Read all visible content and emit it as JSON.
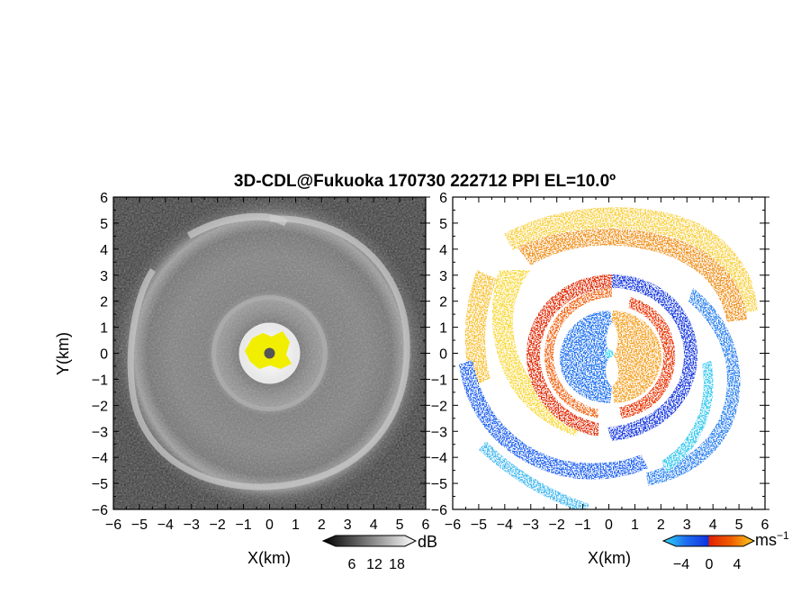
{
  "title": "3D-CDL@Fukuoka 170730 222712 PPI EL=10.0º",
  "colors": {
    "background": "#ffffff",
    "highlight_yellow": "#f2ee00",
    "velocity_negative": [
      "#1030e0",
      "#1e6ff0",
      "#18aaf0",
      "#30d8f0"
    ],
    "velocity_positive": [
      "#e02000",
      "#f06000",
      "#f59a10",
      "#f8cc20",
      "#f8e840"
    ]
  },
  "chart_data": [
    {
      "type": "heatmap",
      "panel": "left",
      "quantity": "reflectivity",
      "xlabel": "X(km)",
      "ylabel": "Y(km)",
      "xlim": [
        -6,
        6
      ],
      "ylim": [
        -6,
        6
      ],
      "xticks": [
        "−6",
        "−5",
        "−4",
        "−3",
        "−2",
        "−1",
        "0",
        "1",
        "2",
        "3",
        "4",
        "5",
        "6"
      ],
      "yticks": [
        "6",
        "5",
        "4",
        "3",
        "2",
        "1",
        "0",
        "−1",
        "−2",
        "−3",
        "−4",
        "−5",
        "−6"
      ],
      "colorbar": {
        "ticks": [
          "6",
          "12",
          "18"
        ],
        "unit": "dB",
        "colormap": "grayscale"
      },
      "features": {
        "center_bright_radius_km": 1.0,
        "ring_radius_km": 2.2,
        "outer_spiral_radius_km": 5.2
      }
    },
    {
      "type": "heatmap",
      "panel": "right",
      "quantity": "radial velocity",
      "xlabel": "X(km)",
      "ylabel": "",
      "xlim": [
        -6,
        6
      ],
      "ylim": [
        -6,
        6
      ],
      "xticks": [
        "−6",
        "−5",
        "−4",
        "−3",
        "−2",
        "−1",
        "0",
        "1",
        "2",
        "3",
        "4",
        "5",
        "6"
      ],
      "yticks": [
        "6",
        "5",
        "4",
        "3",
        "2",
        "1",
        "0",
        "−1",
        "−2",
        "−3",
        "−4",
        "−5",
        "−6"
      ],
      "colorbar": {
        "ticks": [
          "−4",
          "0",
          "4"
        ],
        "unit": "ms",
        "unit_exponent": "−1",
        "colormap": "blue-orange"
      },
      "features": {
        "west_side_sign": "positive",
        "east_side_sign": "negative",
        "inner_core_west": "negative",
        "inner_core_east": "positive"
      }
    }
  ]
}
